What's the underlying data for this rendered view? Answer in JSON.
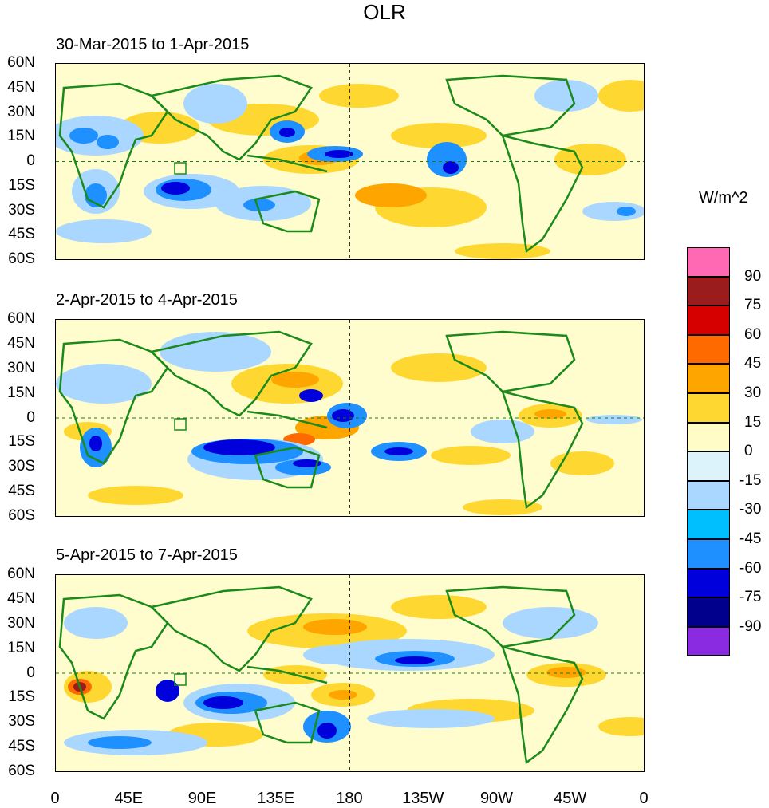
{
  "chart_data": {
    "type": "heatmap",
    "title": "OLR",
    "units": "W/m^2",
    "panels": [
      {
        "title": "30-Mar-2015 to 1-Apr-2015"
      },
      {
        "title": "2-Apr-2015 to 4-Apr-2015"
      },
      {
        "title": "5-Apr-2015 to 7-Apr-2015"
      }
    ],
    "lat_ticks": [
      "60N",
      "45N",
      "30N",
      "15N",
      "0",
      "15S",
      "30S",
      "45S",
      "60S"
    ],
    "lon_ticks": [
      "0",
      "45E",
      "90E",
      "135E",
      "180",
      "135W",
      "90W",
      "45W",
      "0"
    ],
    "lat_range": [
      -60,
      60
    ],
    "lon_range": [
      0,
      360
    ],
    "colorbar": {
      "levels": [
        "90",
        "75",
        "60",
        "45",
        "30",
        "15",
        "0",
        "-15",
        "-30",
        "-45",
        "-60",
        "-75",
        "-90"
      ],
      "colors": [
        "#ff69b4",
        "#9b1c1c",
        "#d60000",
        "#ff6a00",
        "#ffa500",
        "#ffd731",
        "#fffcc8",
        "#dcf3fb",
        "#a9d7ff",
        "#00bfff",
        "#1e90ff",
        "#0000dc",
        "#00008c",
        "#8a2be2"
      ]
    }
  }
}
